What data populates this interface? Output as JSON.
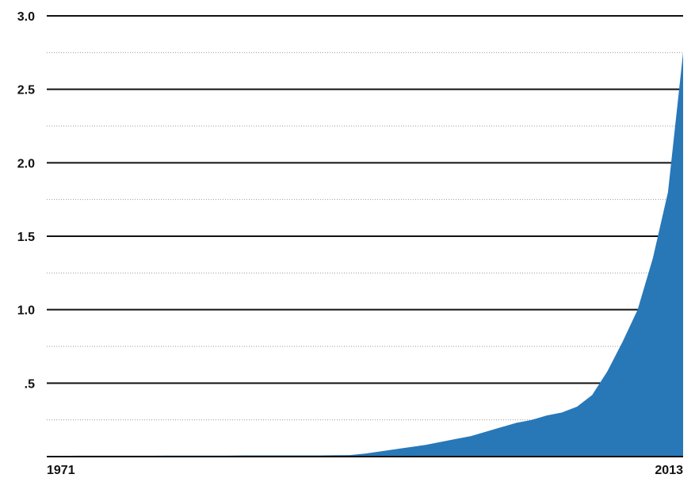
{
  "chart_data": {
    "type": "area",
    "title": "",
    "xlabel": "",
    "ylabel": "",
    "x_tick_labels": [
      "1971",
      "2013"
    ],
    "y_tick_labels": [
      "3.0",
      "2.5",
      "2.0",
      "1.5",
      "1.0",
      ".5"
    ],
    "y_ticks": [
      3.0,
      2.5,
      2.0,
      1.5,
      1.0,
      0.5
    ],
    "ylim": [
      0,
      3.0
    ],
    "xlim": [
      1971,
      2013
    ],
    "grid": true,
    "fill_color": "#2878b8",
    "series": [
      {
        "x": [
          1971,
          1972,
          1973,
          1974,
          1975,
          1976,
          1977,
          1978,
          1979,
          1980,
          1981,
          1982,
          1983,
          1984,
          1985,
          1986,
          1987,
          1988,
          1989,
          1990,
          1991,
          1992,
          1993,
          1994,
          1995,
          1996,
          1997,
          1998,
          1999,
          2000,
          2001,
          2002,
          2003,
          2004,
          2005,
          2006,
          2007,
          2008,
          2009,
          2010,
          2011,
          2012,
          2013
        ],
        "values": [
          0.005,
          0.005,
          0.006,
          0.006,
          0.006,
          0.006,
          0.006,
          0.006,
          0.007,
          0.007,
          0.007,
          0.007,
          0.007,
          0.008,
          0.008,
          0.008,
          0.008,
          0.008,
          0.008,
          0.009,
          0.01,
          0.02,
          0.035,
          0.05,
          0.065,
          0.08,
          0.1,
          0.12,
          0.14,
          0.17,
          0.2,
          0.23,
          0.25,
          0.28,
          0.3,
          0.34,
          0.42,
          0.58,
          0.78,
          1.0,
          1.35,
          1.8,
          2.75
        ]
      }
    ]
  }
}
